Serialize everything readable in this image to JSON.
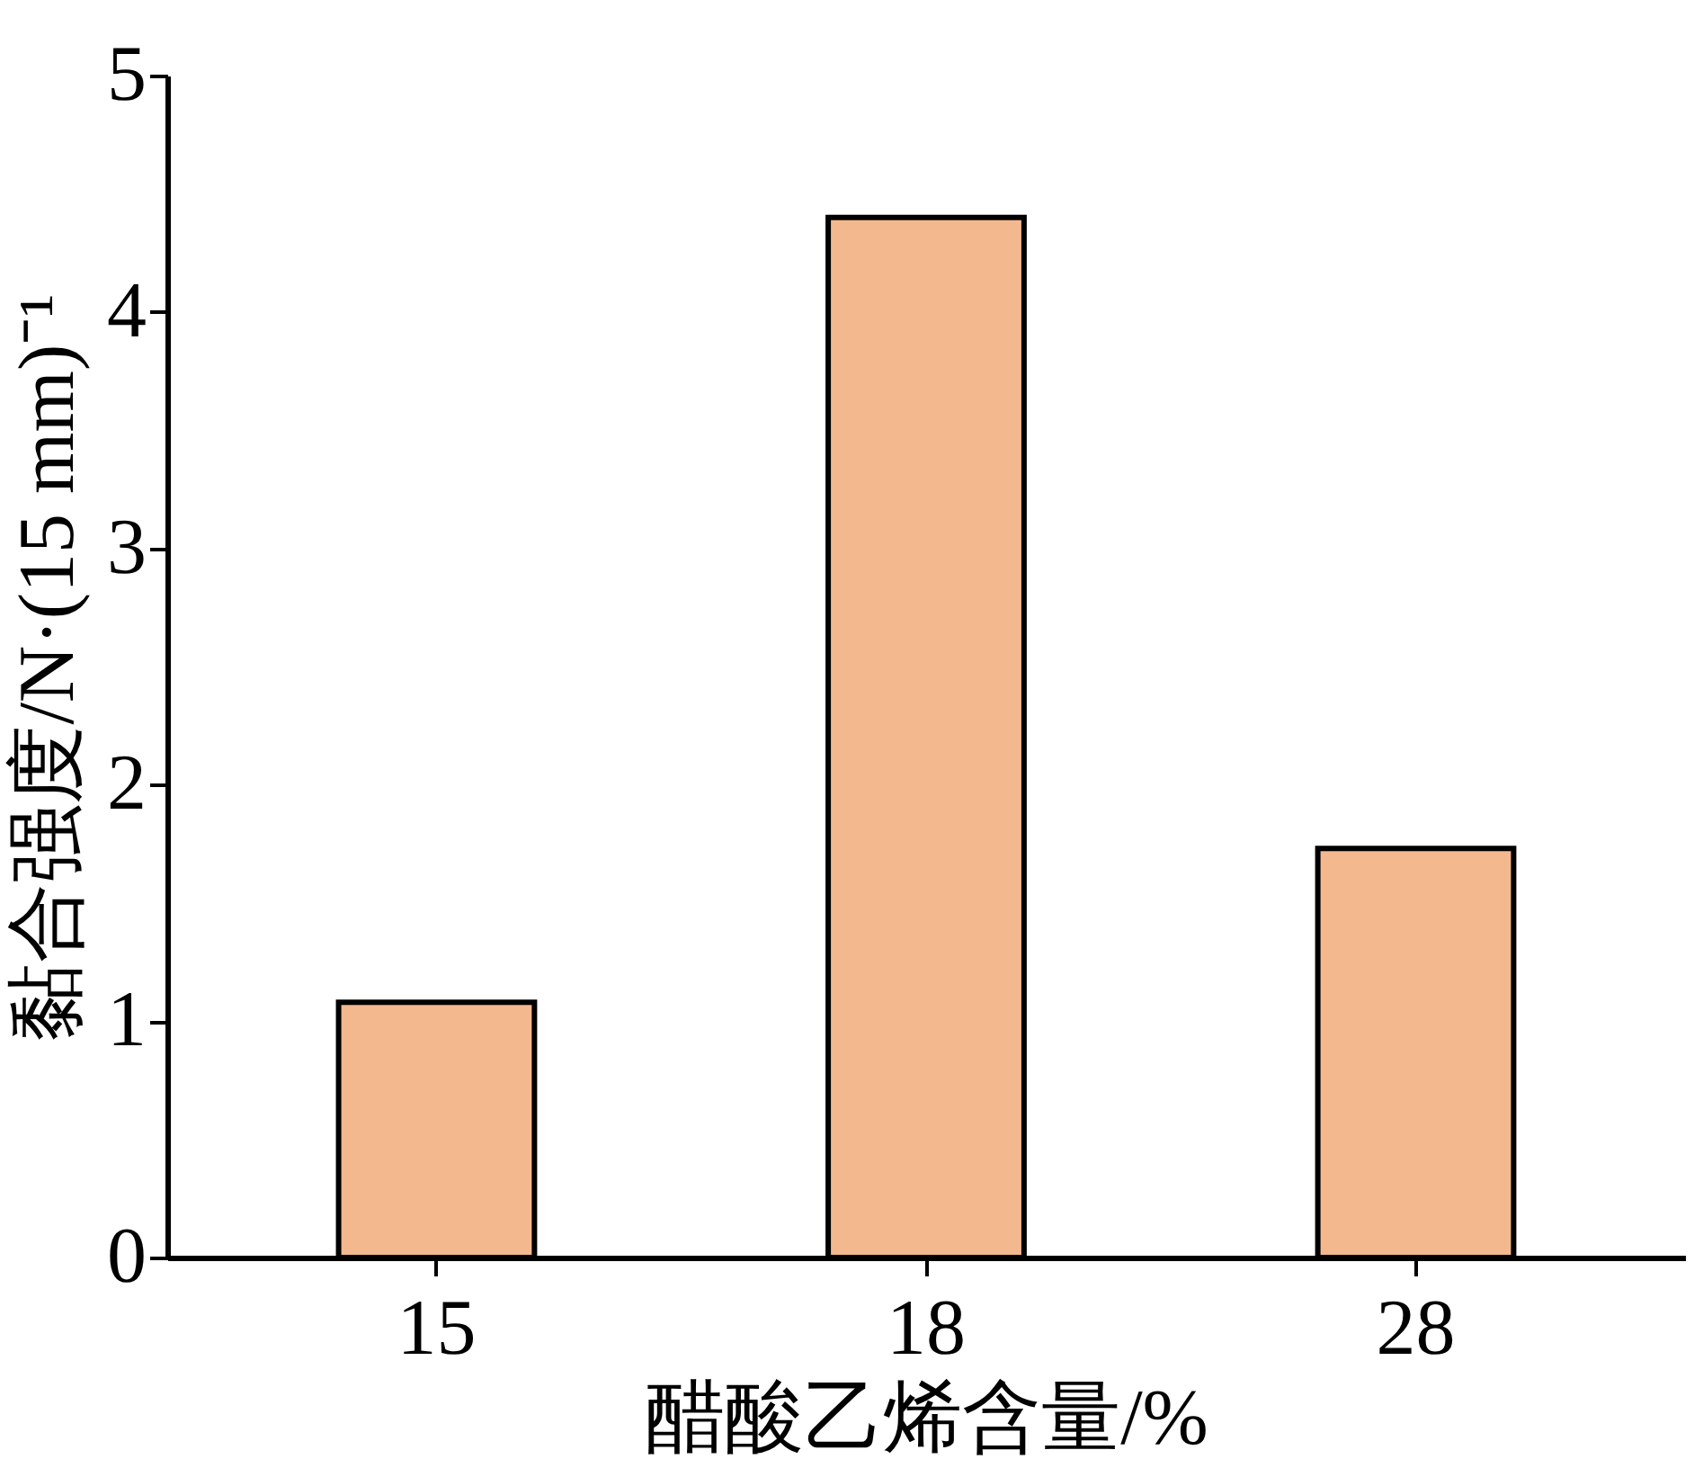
{
  "chart_data": {
    "type": "bar",
    "xlabel": "醋酸乙烯含量/%",
    "ylabel": "黏合强度/N·(15 mm)⁻¹",
    "categories": [
      "15",
      "18",
      "28"
    ],
    "values": [
      1.08,
      4.4,
      1.73
    ],
    "color": "#f4b88f",
    "ylim": [
      0,
      5
    ],
    "yticks": [
      0,
      1,
      2,
      3,
      4,
      5
    ],
    "grid": false
  }
}
